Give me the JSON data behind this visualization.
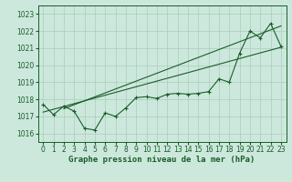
{
  "xlabel": "Graphe pression niveau de la mer (hPa)",
  "bg_color": "#cce8dc",
  "line_color": "#1a5c2a",
  "grid_color": "#aaccbb",
  "x_values": [
    0,
    1,
    2,
    3,
    4,
    5,
    6,
    7,
    8,
    9,
    10,
    11,
    12,
    13,
    14,
    15,
    16,
    17,
    18,
    19,
    20,
    21,
    22,
    23
  ],
  "y_values": [
    1017.7,
    1017.1,
    1017.6,
    1017.3,
    1016.3,
    1016.2,
    1017.2,
    1017.0,
    1017.5,
    1018.1,
    1018.15,
    1018.05,
    1018.3,
    1018.35,
    1018.3,
    1018.35,
    1018.45,
    1019.2,
    1019.0,
    1020.7,
    1022.0,
    1021.6,
    1022.45,
    1021.1
  ],
  "trend1_x": [
    0,
    23
  ],
  "trend1_y": [
    1017.25,
    1021.05
  ],
  "trend2_x": [
    2,
    23
  ],
  "trend2_y": [
    1017.45,
    1022.3
  ],
  "ylim": [
    1015.5,
    1023.5
  ],
  "xlim": [
    -0.5,
    23.5
  ],
  "yticks": [
    1016,
    1017,
    1018,
    1019,
    1020,
    1021,
    1022,
    1023
  ],
  "xticks": [
    0,
    1,
    2,
    3,
    4,
    5,
    6,
    7,
    8,
    9,
    10,
    11,
    12,
    13,
    14,
    15,
    16,
    17,
    18,
    19,
    20,
    21,
    22,
    23
  ],
  "xtick_labels": [
    "0",
    "1",
    "2",
    "3",
    "4",
    "5",
    "6",
    "7",
    "8",
    "9",
    "10",
    "11",
    "12",
    "13",
    "14",
    "15",
    "16",
    "17",
    "18",
    "19",
    "20",
    "21",
    "22",
    "23"
  ],
  "xlabel_fontsize": 6.5,
  "tick_fontsize": 5.5,
  "marker": "+",
  "markersize": 3.5,
  "linewidth": 0.8
}
